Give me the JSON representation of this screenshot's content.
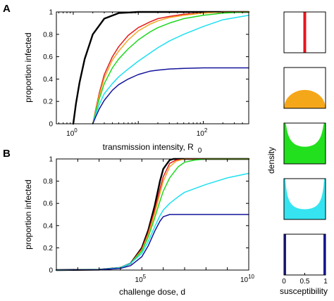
{
  "panel_labels": [
    "A",
    "B"
  ],
  "colors": {
    "black": "#000000",
    "red": "#e41a1c",
    "orange": "#f5a623",
    "green": "#1fd81f",
    "cyan": "#1ee0f0",
    "blue": "#14149c",
    "density_red": "#e8141c",
    "density_orange": "#f5a71a",
    "density_green": "#22e01e",
    "density_cyan": "#35e4f0",
    "density_blue": "#1a1aa0"
  },
  "chart_data": [
    {
      "type": "line",
      "panel": "A",
      "xlabel": "transmission intensity, R",
      "xlabel_sub": "0",
      "ylabel": "proportion infected",
      "xscale": "log",
      "xlim": [
        0.55,
        500
      ],
      "ylim": [
        0,
        1
      ],
      "yticks": [
        "0",
        "0.2",
        "0.4",
        "0.6",
        "0.8",
        "1"
      ],
      "xticks": [
        {
          "base": "10",
          "exp": "0",
          "value": 1
        },
        {
          "base": "10",
          "exp": "2",
          "value": 100
        }
      ],
      "grid": false,
      "series": [
        {
          "color": "black",
          "x": [
            1,
            1.1,
            1.25,
            1.5,
            2,
            3,
            5,
            10,
            20,
            50,
            100,
            200,
            500
          ],
          "y": [
            0,
            0.18,
            0.37,
            0.58,
            0.8,
            0.94,
            0.99,
            1,
            1,
            1,
            1,
            1,
            1
          ]
        },
        {
          "color": "red",
          "x": [
            2,
            2.2,
            2.5,
            3,
            4,
            5,
            7,
            10,
            15,
            20,
            30,
            50,
            100,
            200,
            500
          ],
          "y": [
            0,
            0.12,
            0.27,
            0.44,
            0.6,
            0.69,
            0.79,
            0.86,
            0.91,
            0.94,
            0.96,
            0.98,
            0.99,
            1,
            1
          ]
        },
        {
          "color": "orange",
          "x": [
            2,
            2.2,
            2.5,
            3,
            4,
            5,
            7,
            10,
            15,
            20,
            30,
            50,
            100,
            200,
            500
          ],
          "y": [
            0,
            0.11,
            0.25,
            0.41,
            0.57,
            0.65,
            0.75,
            0.83,
            0.89,
            0.92,
            0.95,
            0.97,
            0.99,
            1,
            1
          ]
        },
        {
          "color": "green",
          "x": [
            2,
            2.2,
            2.5,
            3,
            4,
            5,
            7,
            10,
            15,
            20,
            30,
            50,
            100,
            200,
            500
          ],
          "y": [
            0,
            0.1,
            0.22,
            0.36,
            0.5,
            0.58,
            0.67,
            0.75,
            0.82,
            0.86,
            0.9,
            0.94,
            0.97,
            0.99,
            1
          ]
        },
        {
          "color": "cyan",
          "x": [
            2,
            2.2,
            2.5,
            3,
            4,
            5,
            7,
            10,
            15,
            20,
            30,
            50,
            100,
            200,
            500
          ],
          "y": [
            0,
            0.08,
            0.17,
            0.27,
            0.36,
            0.42,
            0.49,
            0.56,
            0.63,
            0.68,
            0.74,
            0.8,
            0.87,
            0.93,
            0.97
          ]
        },
        {
          "color": "blue",
          "x": [
            2,
            2.2,
            2.5,
            3,
            4,
            5,
            7,
            10,
            15,
            20,
            30,
            50,
            100,
            200,
            500
          ],
          "y": [
            0,
            0.06,
            0.13,
            0.21,
            0.3,
            0.35,
            0.4,
            0.44,
            0.47,
            0.48,
            0.49,
            0.495,
            0.5,
            0.5,
            0.5
          ]
        }
      ]
    },
    {
      "type": "line",
      "panel": "B",
      "xlabel": "challenge dose, d",
      "ylabel": "proportion infected",
      "xscale": "log",
      "xlim": [
        10,
        10000000000
      ],
      "ylim": [
        0,
        1
      ],
      "yticks": [
        "0",
        "0.2",
        "0.4",
        "0.6",
        "0.8",
        "1"
      ],
      "xticks": [
        {
          "base": "10",
          "exp": "5",
          "value": 100000
        },
        {
          "base": "10",
          "exp": "10",
          "value": 10000000000
        }
      ],
      "grid": false,
      "series": [
        {
          "color": "black",
          "x": [
            10,
            1000,
            10000,
            30000,
            100000,
            200000,
            400000,
            700000,
            1000000,
            2000000,
            3000000,
            10000000000
          ],
          "y": [
            0,
            0.004,
            0.02,
            0.06,
            0.2,
            0.36,
            0.58,
            0.8,
            0.91,
            0.99,
            1,
            1
          ]
        },
        {
          "color": "red",
          "x": [
            10,
            1000,
            10000,
            30000,
            100000,
            200000,
            400000,
            700000,
            1000000,
            2000000,
            4000000,
            10000000,
            10000000000
          ],
          "y": [
            0,
            0.004,
            0.02,
            0.06,
            0.19,
            0.34,
            0.54,
            0.73,
            0.84,
            0.96,
            0.99,
            1,
            1
          ]
        },
        {
          "color": "orange",
          "x": [
            10,
            1000,
            10000,
            30000,
            100000,
            200000,
            400000,
            700000,
            1000000,
            2000000,
            4000000,
            10000000,
            10000000000
          ],
          "y": [
            0,
            0.004,
            0.02,
            0.06,
            0.18,
            0.32,
            0.51,
            0.69,
            0.8,
            0.93,
            0.98,
            1,
            1
          ]
        },
        {
          "color": "green",
          "x": [
            10,
            1000,
            10000,
            30000,
            100000,
            200000,
            400000,
            700000,
            1000000,
            2000000,
            5000000,
            10000000,
            30000000,
            100000000,
            10000000000
          ],
          "y": [
            0,
            0.004,
            0.02,
            0.06,
            0.17,
            0.3,
            0.47,
            0.62,
            0.71,
            0.83,
            0.93,
            0.97,
            0.99,
            1,
            1
          ]
        },
        {
          "color": "cyan",
          "x": [
            10,
            1000,
            10000,
            30000,
            100000,
            200000,
            400000,
            700000,
            1000000,
            2000000,
            5000000,
            10000000,
            100000000,
            1000000000,
            10000000000
          ],
          "y": [
            0,
            0.004,
            0.02,
            0.06,
            0.15,
            0.26,
            0.39,
            0.49,
            0.54,
            0.6,
            0.66,
            0.7,
            0.77,
            0.83,
            0.87
          ]
        },
        {
          "color": "blue",
          "x": [
            10,
            1000,
            10000,
            30000,
            100000,
            200000,
            400000,
            700000,
            1000000,
            2000000,
            5000000,
            10000000000
          ],
          "y": [
            0,
            0.003,
            0.015,
            0.04,
            0.12,
            0.22,
            0.35,
            0.44,
            0.48,
            0.5,
            0.5,
            0.5
          ]
        }
      ]
    },
    {
      "type": "area",
      "panel": "density-insets",
      "xlabel": "susceptibility",
      "ylabel": "density",
      "xlim": [
        0,
        1
      ],
      "xticks": [
        "0",
        "0.5",
        "1"
      ],
      "insets": [
        {
          "kind": "point",
          "at": 0.5,
          "color": "density_red"
        },
        {
          "kind": "hump",
          "color": "density_orange"
        },
        {
          "kind": "u",
          "strength": 0.6,
          "color": "density_green"
        },
        {
          "kind": "u",
          "strength": 0.85,
          "color": "density_cyan"
        },
        {
          "kind": "bimodal",
          "color": "density_blue"
        }
      ]
    }
  ]
}
